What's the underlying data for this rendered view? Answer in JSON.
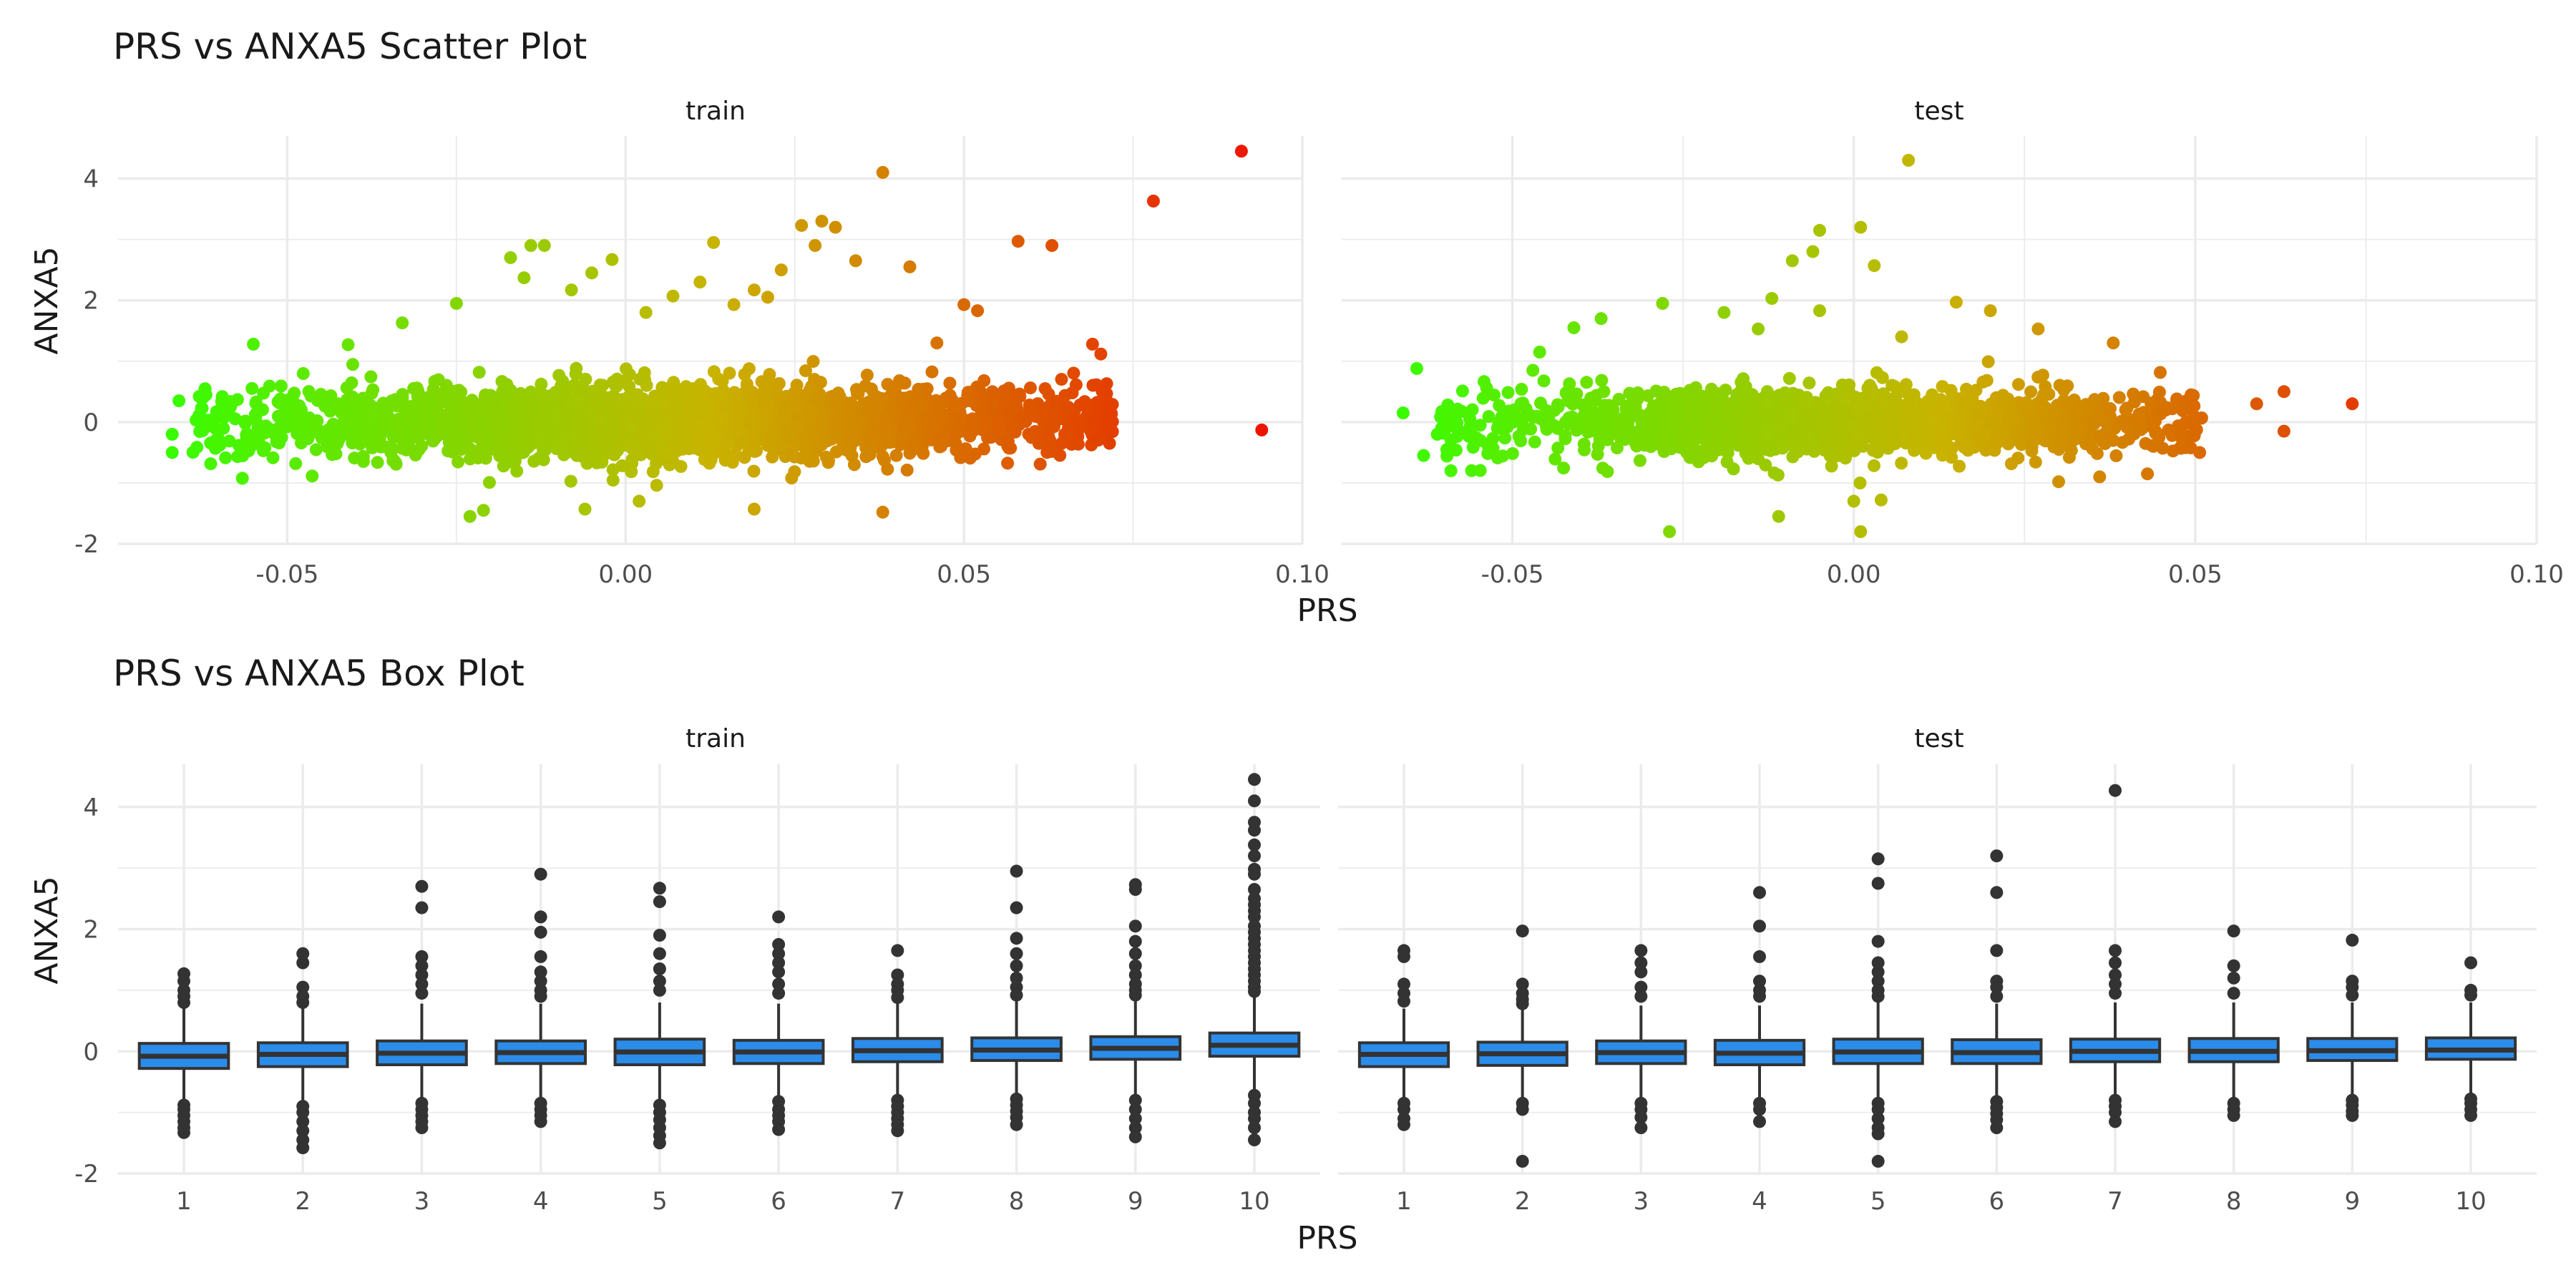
{
  "chart_data": [
    {
      "type": "scatter",
      "title": "PRS vs ANXA5 Scatter Plot",
      "xlabel": "PRS",
      "ylabel": "ANXA5",
      "panels": [
        "train",
        "test"
      ],
      "xlim": [
        -0.075,
        0.1
      ],
      "ylim": [
        -2,
        4.7
      ],
      "x_ticks": [
        -0.05,
        0.0,
        0.05,
        0.1
      ],
      "x_tick_labels": [
        "-0.05",
        "0.00",
        "0.05",
        "0.10"
      ],
      "y_ticks": [
        -2,
        0,
        2,
        4
      ],
      "y_tick_labels": [
        "-2",
        "0",
        "2",
        "4"
      ],
      "color_scale": {
        "low": "#33ff00",
        "mid": "#c8b400",
        "high": "#ee1100",
        "domain": [
          -0.07,
          0.095
        ]
      },
      "summary": {
        "train": {
          "x_range": [
            -0.068,
            0.094
          ],
          "y_center": 0,
          "y_spread": 0.3
        },
        "test": {
          "x_range": [
            -0.065,
            0.073
          ],
          "y_center": 0,
          "y_spread": 0.28
        }
      },
      "points": {
        "train": [
          [
            0.091,
            4.45
          ],
          [
            0.094,
            -0.13
          ],
          [
            0.078,
            3.63
          ],
          [
            0.071,
            0.0
          ],
          [
            0.069,
            1.28
          ],
          [
            0.063,
            2.9
          ],
          [
            0.058,
            2.97
          ],
          [
            0.052,
            1.83
          ],
          [
            0.05,
            1.93
          ],
          [
            0.046,
            1.3
          ],
          [
            0.042,
            2.55
          ],
          [
            0.038,
            4.1
          ],
          [
            0.034,
            2.65
          ],
          [
            0.031,
            3.2
          ],
          [
            0.029,
            3.3
          ],
          [
            0.028,
            2.9
          ],
          [
            0.026,
            3.23
          ],
          [
            0.023,
            2.5
          ],
          [
            0.021,
            2.05
          ],
          [
            0.019,
            2.17
          ],
          [
            0.016,
            1.93
          ],
          [
            0.013,
            2.95
          ],
          [
            0.011,
            2.3
          ],
          [
            0.007,
            2.07
          ],
          [
            0.003,
            1.8
          ],
          [
            -0.002,
            2.67
          ],
          [
            -0.005,
            2.45
          ],
          [
            -0.008,
            2.17
          ],
          [
            -0.012,
            2.9
          ],
          [
            -0.014,
            2.9
          ],
          [
            -0.017,
            2.7
          ],
          [
            -0.015,
            2.37
          ],
          [
            -0.025,
            1.95
          ],
          [
            -0.033,
            1.63
          ],
          [
            -0.041,
            1.27
          ],
          [
            -0.055,
            1.28
          ],
          [
            -0.062,
            0.45
          ],
          [
            -0.067,
            -0.2
          ],
          [
            -0.067,
            -0.5
          ],
          [
            -0.066,
            0.35
          ],
          [
            -0.063,
            0.42
          ],
          [
            -0.023,
            -1.55
          ],
          [
            -0.021,
            -1.45
          ],
          [
            -0.006,
            -1.43
          ],
          [
            0.002,
            -1.3
          ],
          [
            0.019,
            -1.43
          ],
          [
            0.038,
            -1.48
          ],
          [
            0.04,
            -0.55
          ],
          [
            0.03,
            -0.63
          ],
          [
            0.066,
            0.48
          ],
          [
            0.062,
            0.55
          ]
        ],
        "test": [
          [
            0.073,
            0.3
          ],
          [
            0.063,
            0.5
          ],
          [
            0.063,
            -0.15
          ],
          [
            0.059,
            0.3
          ],
          [
            0.043,
            -0.85
          ],
          [
            0.038,
            1.3
          ],
          [
            0.027,
            1.53
          ],
          [
            0.02,
            1.83
          ],
          [
            0.015,
            1.97
          ],
          [
            0.008,
            4.3
          ],
          [
            0.007,
            1.4
          ],
          [
            0.003,
            2.57
          ],
          [
            0.001,
            3.2
          ],
          [
            -0.005,
            3.15
          ],
          [
            -0.006,
            2.8
          ],
          [
            -0.009,
            2.65
          ],
          [
            -0.005,
            1.83
          ],
          [
            -0.012,
            2.03
          ],
          [
            -0.014,
            1.53
          ],
          [
            -0.019,
            1.8
          ],
          [
            -0.028,
            1.95
          ],
          [
            -0.037,
            1.7
          ],
          [
            -0.041,
            1.55
          ],
          [
            -0.046,
            1.15
          ],
          [
            -0.047,
            0.85
          ],
          [
            -0.064,
            0.88
          ],
          [
            -0.066,
            0.15
          ],
          [
            -0.063,
            -0.55
          ],
          [
            -0.061,
            -0.2
          ],
          [
            -0.059,
            -0.8
          ],
          [
            -0.027,
            -1.8
          ],
          [
            -0.011,
            -1.55
          ],
          [
            0.001,
            -1.8
          ],
          [
            0.0,
            -1.3
          ],
          [
            0.004,
            -1.28
          ],
          [
            0.03,
            -0.98
          ],
          [
            0.036,
            -0.9
          ]
        ]
      }
    },
    {
      "type": "box",
      "title": "PRS vs ANXA5 Box Plot",
      "xlabel": "PRS",
      "ylabel": "ANXA5",
      "panels": [
        "train",
        "test"
      ],
      "categories": [
        "1",
        "2",
        "3",
        "4",
        "5",
        "6",
        "7",
        "8",
        "9",
        "10"
      ],
      "ylim": [
        -2,
        4.7
      ],
      "y_ticks": [
        -2,
        0,
        2,
        4
      ],
      "y_tick_labels": [
        "-2",
        "0",
        "2",
        "4"
      ],
      "box_color": "#2b8cea",
      "series": [
        {
          "panel": "train",
          "boxes": [
            {
              "q1": -0.28,
              "median": -0.08,
              "q3": 0.13,
              "whisker_low": -0.82,
              "whisker_high": 0.7,
              "outliers": [
                1.27,
                1.15,
                1.0,
                0.9,
                0.8,
                -0.88,
                -0.95,
                -1.05,
                -1.15,
                -1.25,
                -1.33
              ]
            },
            {
              "q1": -0.25,
              "median": -0.05,
              "q3": 0.14,
              "whisker_low": -0.85,
              "whisker_high": 0.7,
              "outliers": [
                1.6,
                1.45,
                1.05,
                0.9,
                0.8,
                -0.9,
                -1.0,
                -1.15,
                -1.3,
                -1.45,
                -1.58
              ]
            },
            {
              "q1": -0.22,
              "median": -0.03,
              "q3": 0.17,
              "whisker_low": -0.82,
              "whisker_high": 0.78,
              "outliers": [
                2.7,
                2.35,
                1.55,
                1.4,
                1.25,
                1.1,
                0.95,
                -0.85,
                -0.95,
                -1.05,
                -1.15,
                -1.25
              ]
            },
            {
              "q1": -0.2,
              "median": -0.02,
              "q3": 0.17,
              "whisker_low": -0.8,
              "whisker_high": 0.78,
              "outliers": [
                2.9,
                2.2,
                1.95,
                1.55,
                1.3,
                1.15,
                1.0,
                0.9,
                -0.85,
                -0.95,
                -1.05,
                -1.15
              ]
            },
            {
              "q1": -0.22,
              "median": -0.01,
              "q3": 0.2,
              "whisker_low": -0.82,
              "whisker_high": 0.8,
              "outliers": [
                2.67,
                2.45,
                1.9,
                1.6,
                1.35,
                1.15,
                1.0,
                -0.88,
                -1.0,
                -1.12,
                -1.25,
                -1.38,
                -1.5
              ]
            },
            {
              "q1": -0.2,
              "median": -0.01,
              "q3": 0.18,
              "whisker_low": -0.78,
              "whisker_high": 0.78,
              "outliers": [
                2.2,
                1.75,
                1.6,
                1.45,
                1.3,
                1.1,
                0.95,
                -0.82,
                -0.95,
                -1.05,
                -1.15,
                -1.28
              ]
            },
            {
              "q1": -0.17,
              "median": 0.01,
              "q3": 0.21,
              "whisker_low": -0.75,
              "whisker_high": 0.8,
              "outliers": [
                1.65,
                1.25,
                1.1,
                1.0,
                0.88,
                -0.8,
                -0.9,
                -1.0,
                -1.1,
                -1.2,
                -1.3
              ]
            },
            {
              "q1": -0.15,
              "median": 0.02,
              "q3": 0.22,
              "whisker_low": -0.72,
              "whisker_high": 0.82,
              "outliers": [
                2.95,
                2.35,
                1.85,
                1.6,
                1.4,
                1.2,
                1.05,
                0.92,
                -0.78,
                -0.88,
                -0.98,
                -1.08,
                -1.2
              ]
            },
            {
              "q1": -0.13,
              "median": 0.05,
              "q3": 0.24,
              "whisker_low": -0.72,
              "whisker_high": 0.85,
              "outliers": [
                2.73,
                2.65,
                2.05,
                1.8,
                1.6,
                1.4,
                1.25,
                1.1,
                1.0,
                0.92,
                -0.8,
                -0.95,
                -1.1,
                -1.25,
                -1.4
              ]
            },
            {
              "q1": -0.08,
              "median": 0.1,
              "q3": 0.3,
              "whisker_low": -0.62,
              "whisker_high": 0.9,
              "outliers": [
                4.45,
                4.1,
                3.75,
                3.62,
                3.38,
                3.2,
                2.98,
                2.9,
                2.65,
                2.5,
                2.4,
                2.3,
                2.2,
                2.05,
                1.95,
                1.85,
                1.75,
                1.65,
                1.55,
                1.45,
                1.35,
                1.25,
                1.15,
                1.05,
                0.98,
                -0.72,
                -0.85,
                -1.0,
                -1.1,
                -1.25,
                -1.45
              ]
            }
          ]
        },
        {
          "panel": "test",
          "boxes": [
            {
              "q1": -0.25,
              "median": -0.05,
              "q3": 0.14,
              "whisker_low": -0.8,
              "whisker_high": 0.7,
              "outliers": [
                1.65,
                1.55,
                1.1,
                0.95,
                0.82,
                -0.85,
                -0.95,
                -1.1,
                -1.2
              ]
            },
            {
              "q1": -0.23,
              "median": -0.04,
              "q3": 0.15,
              "whisker_low": -0.8,
              "whisker_high": 0.72,
              "outliers": [
                1.97,
                1.1,
                0.95,
                0.85,
                0.78,
                -0.85,
                -0.95,
                -1.8
              ]
            },
            {
              "q1": -0.2,
              "median": -0.02,
              "q3": 0.17,
              "whisker_low": -0.78,
              "whisker_high": 0.75,
              "outliers": [
                1.65,
                1.45,
                1.3,
                1.05,
                0.9,
                -0.85,
                -0.95,
                -1.08,
                -1.25
              ]
            },
            {
              "q1": -0.22,
              "median": -0.03,
              "q3": 0.18,
              "whisker_low": -0.8,
              "whisker_high": 0.75,
              "outliers": [
                2.6,
                2.05,
                1.55,
                1.15,
                1.0,
                0.9,
                -0.85,
                -0.95,
                -1.15
              ]
            },
            {
              "q1": -0.2,
              "median": -0.01,
              "q3": 0.2,
              "whisker_low": -0.8,
              "whisker_high": 0.8,
              "outliers": [
                3.15,
                2.75,
                1.8,
                1.45,
                1.3,
                1.15,
                1.0,
                0.9,
                -0.85,
                -0.95,
                -1.1,
                -1.25,
                -1.35,
                -1.8
              ]
            },
            {
              "q1": -0.2,
              "median": -0.02,
              "q3": 0.19,
              "whisker_low": -0.8,
              "whisker_high": 0.78,
              "outliers": [
                3.2,
                2.6,
                1.65,
                1.15,
                1.05,
                0.9,
                -0.82,
                -0.92,
                -1.02,
                -1.12,
                -1.25
              ]
            },
            {
              "q1": -0.17,
              "median": 0.0,
              "q3": 0.2,
              "whisker_low": -0.75,
              "whisker_high": 0.8,
              "outliers": [
                4.27,
                1.65,
                1.45,
                1.25,
                1.1,
                0.95,
                -0.8,
                -0.9,
                -1.0,
                -1.15
              ]
            },
            {
              "q1": -0.17,
              "median": 0.0,
              "q3": 0.21,
              "whisker_low": -0.75,
              "whisker_high": 0.8,
              "outliers": [
                1.97,
                1.4,
                1.2,
                0.95,
                -0.85,
                -0.95,
                -1.05
              ]
            },
            {
              "q1": -0.15,
              "median": 0.01,
              "q3": 0.21,
              "whisker_low": -0.72,
              "whisker_high": 0.8,
              "outliers": [
                1.82,
                1.15,
                1.05,
                0.92,
                -0.8,
                -0.88,
                -0.98,
                -1.05
              ]
            },
            {
              "q1": -0.13,
              "median": 0.02,
              "q3": 0.22,
              "whisker_low": -0.7,
              "whisker_high": 0.8,
              "outliers": [
                1.45,
                1.0,
                0.92,
                -0.78,
                -0.85,
                -0.95,
                -1.05
              ]
            }
          ]
        }
      ]
    }
  ]
}
